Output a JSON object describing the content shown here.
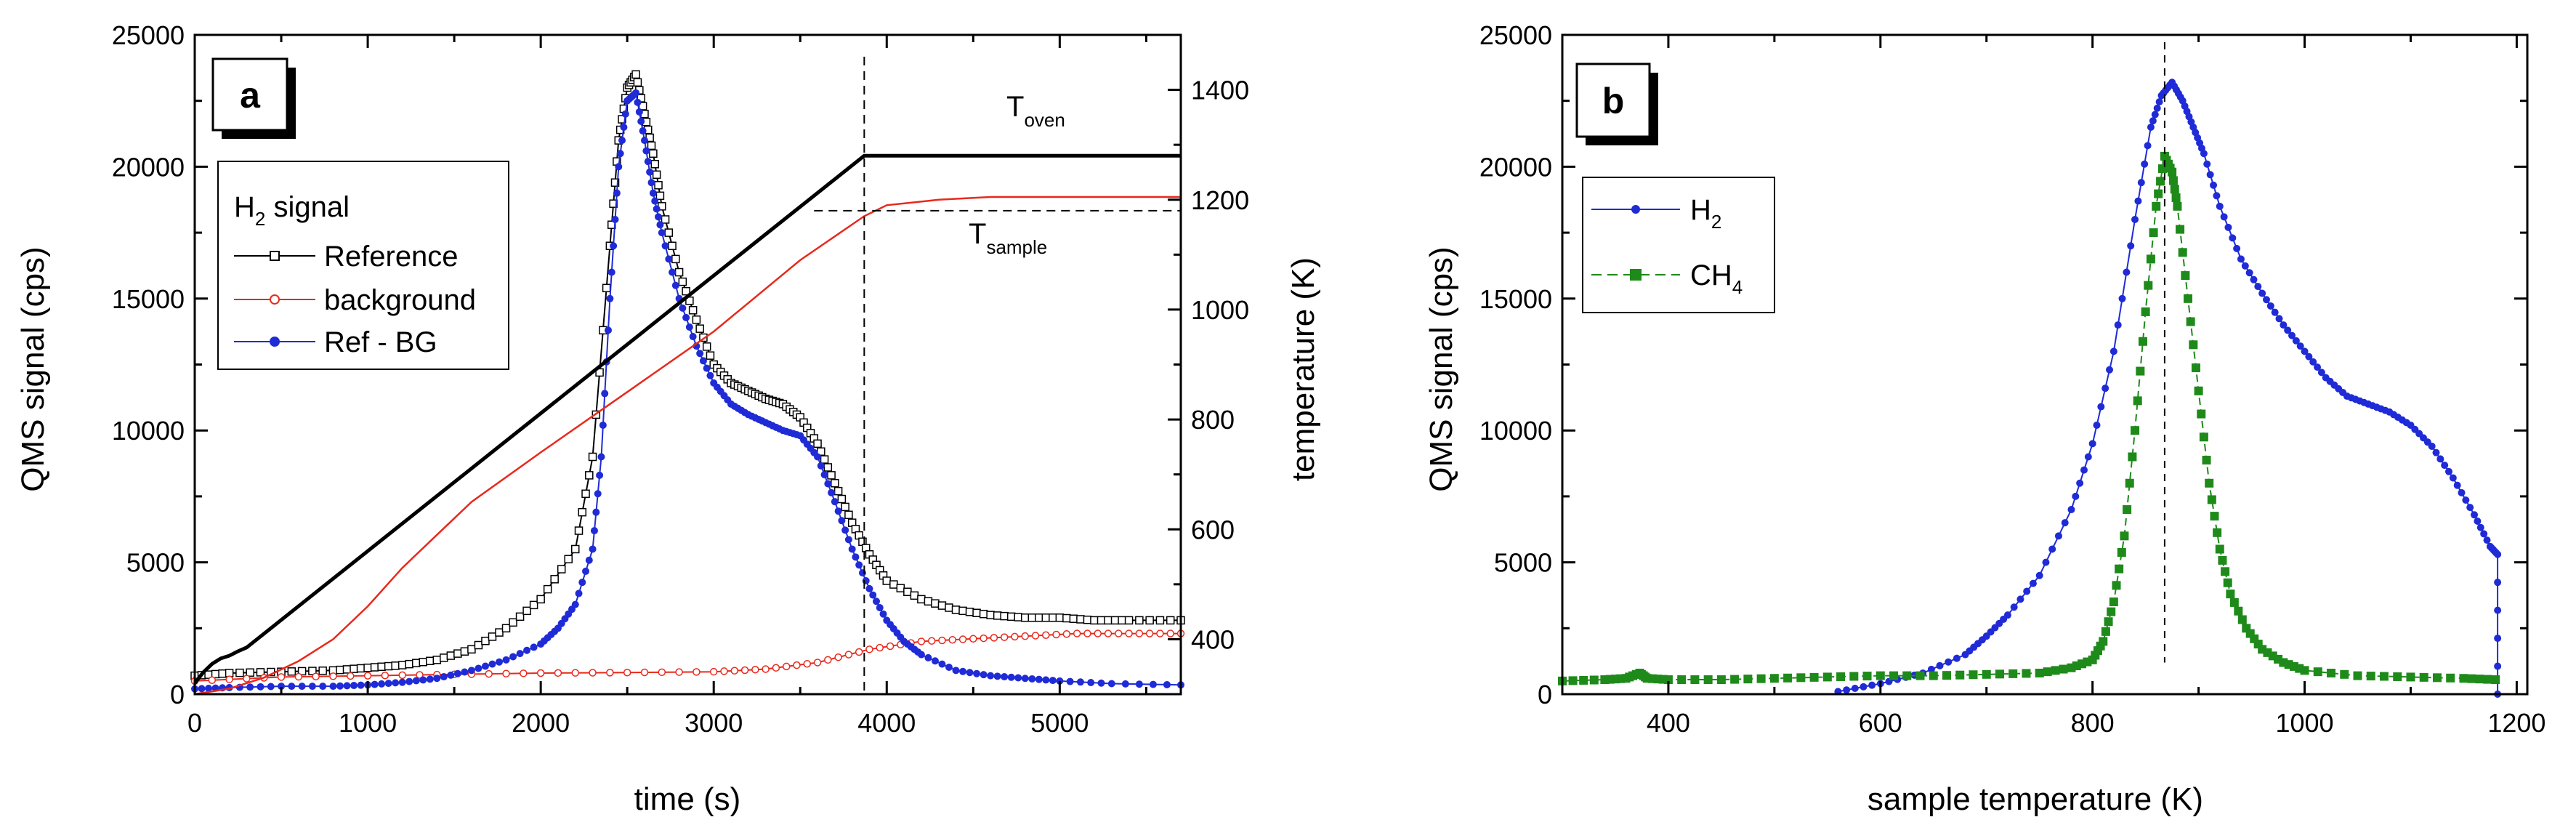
{
  "chart_data": [
    {
      "panel": "a",
      "type": "line",
      "xlabel": "time (s)",
      "ylabel": "QMS signal (cps)",
      "y2label": "temperature (K)",
      "xlim": [
        0,
        5700
      ],
      "ylim": [
        0,
        25000
      ],
      "y2lim": [
        300,
        1500
      ],
      "xticks": [
        "0",
        "1000",
        "2000",
        "3000",
        "4000",
        "5000"
      ],
      "yticks": [
        "0",
        "5000",
        "10000",
        "15000",
        "20000",
        "25000"
      ],
      "y2ticks": [
        "400",
        "600",
        "800",
        "1000",
        "1200",
        "1400"
      ],
      "legend": {
        "title": "H",
        "title_sub": "2",
        "title_rest": " signal",
        "entries": [
          "Reference",
          "background",
          "Ref - BG"
        ]
      },
      "annotations": {
        "t_oven": "T",
        "t_oven_sub": "oven",
        "t_sample": "T",
        "t_sample_sub": "sample",
        "vline_x": 3870,
        "hline_y2": 1180
      },
      "series": [
        {
          "name": "Reference",
          "color": "#000000",
          "marker": "open-square",
          "points": [
            [
              0,
              700
            ],
            [
              200,
              800
            ],
            [
              500,
              850
            ],
            [
              800,
              900
            ],
            [
              1000,
              1000
            ],
            [
              1200,
              1100
            ],
            [
              1400,
              1300
            ],
            [
              1600,
              1700
            ],
            [
              1800,
              2500
            ],
            [
              2000,
              3600
            ],
            [
              2200,
              5500
            ],
            [
              2300,
              9000
            ],
            [
              2400,
              17000
            ],
            [
              2450,
              21000
            ],
            [
              2500,
              23000
            ],
            [
              2550,
              23500
            ],
            [
              2600,
              22000
            ],
            [
              2650,
              20500
            ],
            [
              2700,
              18500
            ],
            [
              2800,
              16000
            ],
            [
              2900,
              14200
            ],
            [
              3000,
              12500
            ],
            [
              3100,
              11800
            ],
            [
              3200,
              11500
            ],
            [
              3300,
              11200
            ],
            [
              3400,
              11000
            ],
            [
              3500,
              10500
            ],
            [
              3600,
              9500
            ],
            [
              3700,
              8000
            ],
            [
              3800,
              6500
            ],
            [
              3900,
              5300
            ],
            [
              4000,
              4300
            ],
            [
              4200,
              3600
            ],
            [
              4400,
              3200
            ],
            [
              4600,
              3000
            ],
            [
              4800,
              2900
            ],
            [
              5000,
              2900
            ],
            [
              5200,
              2800
            ],
            [
              5400,
              2800
            ],
            [
              5700,
              2800
            ]
          ]
        },
        {
          "name": "background",
          "color": "#e8291c",
          "marker": "open-circle",
          "points": [
            [
              0,
              500
            ],
            [
              500,
              650
            ],
            [
              1000,
              700
            ],
            [
              1500,
              750
            ],
            [
              2000,
              800
            ],
            [
              2500,
              820
            ],
            [
              3000,
              850
            ],
            [
              3300,
              950
            ],
            [
              3600,
              1200
            ],
            [
              3900,
              1700
            ],
            [
              4200,
              2000
            ],
            [
              4500,
              2100
            ],
            [
              4800,
              2200
            ],
            [
              5100,
              2300
            ],
            [
              5400,
              2300
            ],
            [
              5700,
              2300
            ]
          ]
        },
        {
          "name": "Ref - BG",
          "color": "#1f2bd6",
          "marker": "filled-circle",
          "points": [
            [
              0,
              200
            ],
            [
              200,
              250
            ],
            [
              500,
              300
            ],
            [
              800,
              300
            ],
            [
              1000,
              350
            ],
            [
              1200,
              450
            ],
            [
              1400,
              600
            ],
            [
              1600,
              900
            ],
            [
              1800,
              1300
            ],
            [
              2000,
              1900
            ],
            [
              2100,
              2500
            ],
            [
              2200,
              3400
            ],
            [
              2300,
              5500
            ],
            [
              2350,
              9000
            ],
            [
              2400,
              15000
            ],
            [
              2450,
              20000
            ],
            [
              2500,
              22500
            ],
            [
              2550,
              22800
            ],
            [
              2600,
              21000
            ],
            [
              2650,
              19000
            ],
            [
              2700,
              17500
            ],
            [
              2800,
              15000
            ],
            [
              2900,
              13200
            ],
            [
              3000,
              11800
            ],
            [
              3100,
              11000
            ],
            [
              3200,
              10600
            ],
            [
              3300,
              10300
            ],
            [
              3400,
              10000
            ],
            [
              3500,
              9800
            ],
            [
              3600,
              9000
            ],
            [
              3700,
              7300
            ],
            [
              3800,
              5500
            ],
            [
              3900,
              4000
            ],
            [
              4000,
              2800
            ],
            [
              4100,
              2000
            ],
            [
              4200,
              1500
            ],
            [
              4400,
              900
            ],
            [
              4600,
              700
            ],
            [
              4800,
              600
            ],
            [
              5000,
              500
            ],
            [
              5300,
              400
            ],
            [
              5700,
              350
            ]
          ]
        },
        {
          "name": "T_oven",
          "color": "#000000",
          "marker": "none",
          "axis": "y2",
          "points": [
            [
              0,
              320
            ],
            [
              50,
              340
            ],
            [
              100,
              355
            ],
            [
              150,
              365
            ],
            [
              200,
              370
            ],
            [
              250,
              378
            ],
            [
              300,
              385
            ],
            [
              3870,
              1280
            ],
            [
              5700,
              1280
            ]
          ]
        },
        {
          "name": "T_sample",
          "color": "#e8291c",
          "marker": "none",
          "axis": "y2",
          "points": [
            [
              0,
              300
            ],
            [
              200,
              310
            ],
            [
              400,
              330
            ],
            [
              600,
              360
            ],
            [
              800,
              400
            ],
            [
              1000,
              460
            ],
            [
              1200,
              530
            ],
            [
              1400,
              590
            ],
            [
              1600,
              650
            ],
            [
              2000,
              740
            ],
            [
              2500,
              850
            ],
            [
              3000,
              960
            ],
            [
              3500,
              1090
            ],
            [
              3870,
              1170
            ],
            [
              4000,
              1190
            ],
            [
              4300,
              1200
            ],
            [
              4600,
              1205
            ],
            [
              5700,
              1205
            ]
          ]
        }
      ]
    },
    {
      "panel": "b",
      "type": "line",
      "xlabel": "sample temperature (K)",
      "ylabel": "QMS signal (cps)",
      "xlim": [
        300,
        1210
      ],
      "ylim": [
        0,
        25000
      ],
      "xticks": [
        "400",
        "600",
        "800",
        "1000",
        "1200"
      ],
      "yticks": [
        "0",
        "5000",
        "10000",
        "15000",
        "20000",
        "25000"
      ],
      "legend": {
        "entries": [
          {
            "main": "H",
            "sub": "2"
          },
          {
            "main": "CH",
            "sub": "4"
          }
        ]
      },
      "annotations": {
        "vline_x": 868
      },
      "series": [
        {
          "name": "H2",
          "color": "#1f2bd6",
          "marker": "filled-circle",
          "points": [
            [
              560,
              100
            ],
            [
              600,
              400
            ],
            [
              640,
              800
            ],
            [
              680,
              1500
            ],
            [
              700,
              2200
            ],
            [
              720,
              3000
            ],
            [
              750,
              4500
            ],
            [
              780,
              7000
            ],
            [
              800,
              9500
            ],
            [
              820,
              13000
            ],
            [
              840,
              18000
            ],
            [
              855,
              21500
            ],
            [
              865,
              22700
            ],
            [
              875,
              23200
            ],
            [
              885,
              22500
            ],
            [
              895,
              21500
            ],
            [
              905,
              20500
            ],
            [
              920,
              18500
            ],
            [
              940,
              16500
            ],
            [
              960,
              15200
            ],
            [
              980,
              14000
            ],
            [
              1000,
              13000
            ],
            [
              1020,
              12000
            ],
            [
              1040,
              11300
            ],
            [
              1060,
              11000
            ],
            [
              1080,
              10700
            ],
            [
              1100,
              10200
            ],
            [
              1120,
              9400
            ],
            [
              1140,
              8200
            ],
            [
              1160,
              6800
            ],
            [
              1175,
              5600
            ],
            [
              1182,
              5300
            ],
            [
              1182,
              0
            ]
          ]
        },
        {
          "name": "CH4",
          "color": "#1e8a1a",
          "marker": "filled-square",
          "points": [
            [
              300,
              500
            ],
            [
              340,
              550
            ],
            [
              360,
              600
            ],
            [
              373,
              800
            ],
            [
              380,
              600
            ],
            [
              400,
              550
            ],
            [
              450,
              550
            ],
            [
              500,
              600
            ],
            [
              550,
              650
            ],
            [
              600,
              700
            ],
            [
              650,
              700
            ],
            [
              700,
              750
            ],
            [
              750,
              800
            ],
            [
              780,
              1000
            ],
            [
              800,
              1300
            ],
            [
              810,
              2000
            ],
            [
              820,
              3500
            ],
            [
              830,
              6000
            ],
            [
              840,
              10000
            ],
            [
              850,
              14500
            ],
            [
              860,
              18500
            ],
            [
              868,
              20400
            ],
            [
              875,
              19800
            ],
            [
              880,
              18500
            ],
            [
              890,
              15000
            ],
            [
              900,
              11500
            ],
            [
              910,
              8000
            ],
            [
              920,
              5500
            ],
            [
              930,
              3800
            ],
            [
              945,
              2500
            ],
            [
              960,
              1700
            ],
            [
              980,
              1200
            ],
            [
              1000,
              900
            ],
            [
              1050,
              700
            ],
            [
              1100,
              650
            ],
            [
              1150,
              600
            ],
            [
              1180,
              550
            ]
          ]
        }
      ]
    }
  ]
}
